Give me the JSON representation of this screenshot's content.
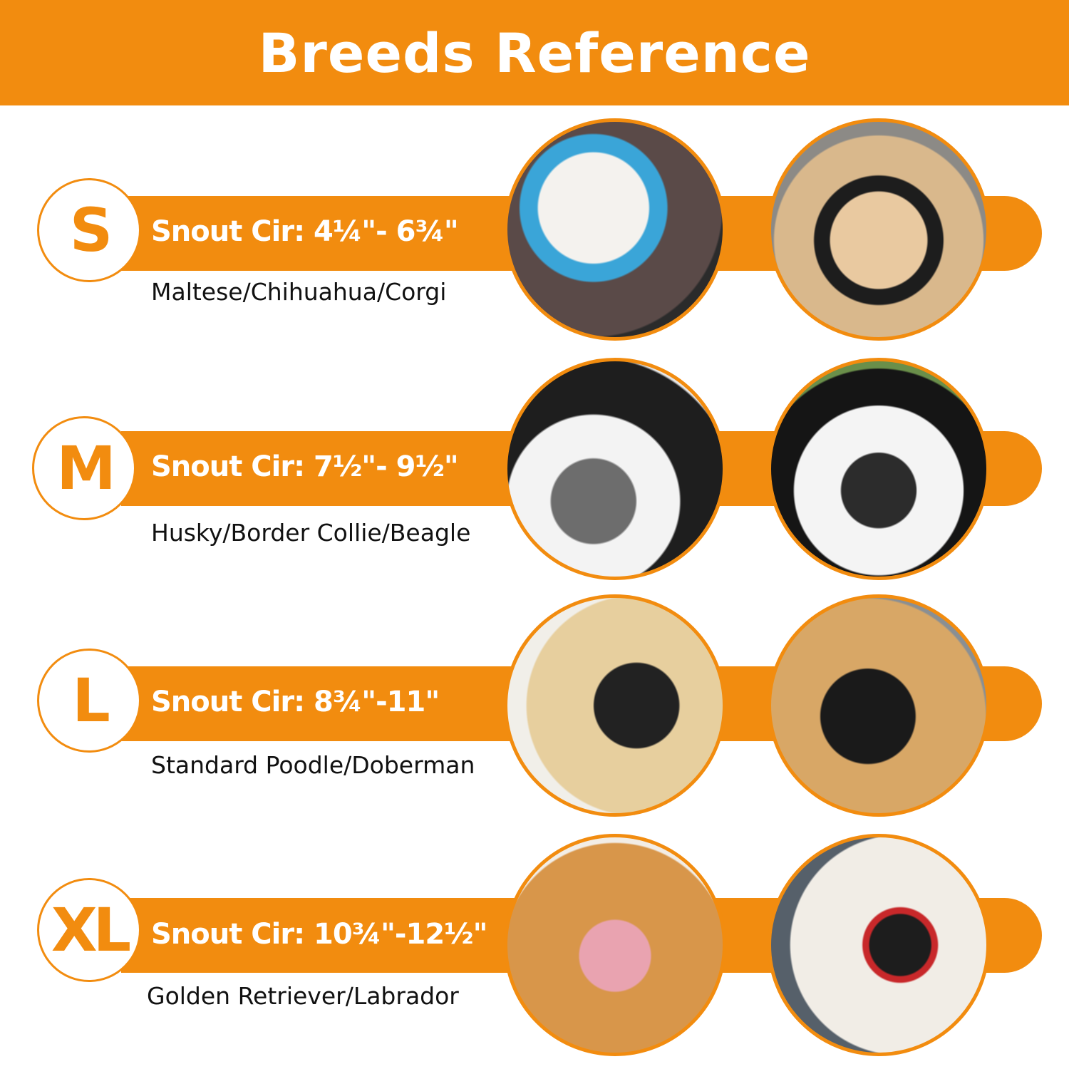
{
  "header": {
    "title": "Breeds Reference"
  },
  "colors": {
    "accent": "#F28C0F",
    "background": "#FFFFFF"
  },
  "sizes": [
    {
      "size": "S",
      "snout": "Snout Cir: 4¼\"- 6¾\"",
      "breeds": "Maltese/Chihuahua/Corgi",
      "photos": [
        "white dog wearing blue muzzle",
        "corgi wearing black muzzle"
      ]
    },
    {
      "size": "M",
      "snout": "Snout Cir: 7½\"- 9½\"",
      "breeds": "Husky/Border Collie/Beagle",
      "photos": [
        "husky wearing gray muzzle",
        "border collie wearing black muzzle"
      ]
    },
    {
      "size": "L",
      "snout": "Snout Cir: 8¾\"-11\"",
      "breeds": "Standard Poodle/Doberman",
      "photos": [
        "labrador wearing black muzzle",
        "golden retriever wearing black muzzle"
      ]
    },
    {
      "size": "XL",
      "snout": "Snout Cir: 10¾\"-12½\"",
      "breeds": "Golden Retriever/Labrador",
      "photos": [
        "golden retriever wearing pink muzzle",
        "white dog wearing red-trimmed muzzle"
      ]
    }
  ]
}
